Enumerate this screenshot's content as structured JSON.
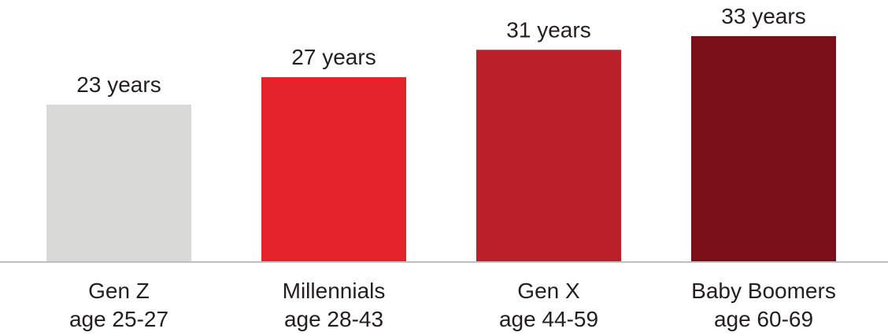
{
  "chart_data": {
    "type": "bar",
    "categories": [
      {
        "line1": "Gen Z",
        "line2": "age 25-27"
      },
      {
        "line1": "Millennials",
        "line2": "age 28-43"
      },
      {
        "line1": "Gen X",
        "line2": "age 44-59"
      },
      {
        "line1": "Baby Boomers",
        "line2": "age 60-69"
      }
    ],
    "values": [
      23,
      27,
      31,
      33
    ],
    "value_labels": [
      "23 years",
      "27 years",
      "31 years",
      "33 years"
    ],
    "unit": "years",
    "colors": [
      "#d9d9d7",
      "#e4222a",
      "#bb1f2a",
      "#7a0f18"
    ],
    "axis_color": "#bfbfbf",
    "ylim": [
      0,
      36
    ],
    "grid": false,
    "title": "",
    "xlabel": "",
    "ylabel": ""
  }
}
